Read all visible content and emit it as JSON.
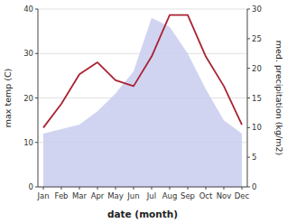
{
  "chart_data": {
    "type": "line",
    "xlabel": "date (month)",
    "ylabel": "max temp (C)",
    "y2label": "med. precipitation (kg/m2)",
    "categories": [
      "Jan",
      "Feb",
      "Mar",
      "Apr",
      "May",
      "Jun",
      "Jul",
      "Aug",
      "Sep",
      "Oct",
      "Nov",
      "Dec"
    ],
    "series": [
      {
        "type": "area",
        "color": "#c8ccee",
        "values": [
          12.0,
          13.0,
          14.0,
          17.0,
          21.0,
          26.0,
          38.0,
          36.0,
          30.0,
          22.0,
          15.0,
          12.0
        ]
      },
      {
        "type": "line",
        "color": "#aa2233",
        "axis": "y2",
        "values": [
          10.0,
          14.0,
          19.0,
          21.0,
          18.0,
          17.0,
          22.0,
          29.0,
          29.0,
          22.0,
          17.0,
          10.5
        ]
      }
    ],
    "ylim": [
      0,
      40
    ],
    "yticks": [
      0,
      10,
      20,
      30,
      40
    ],
    "y2lim": [
      0,
      30
    ],
    "y2ticks": [
      0,
      5,
      10,
      15,
      20,
      25,
      30
    ],
    "grid": true
  }
}
